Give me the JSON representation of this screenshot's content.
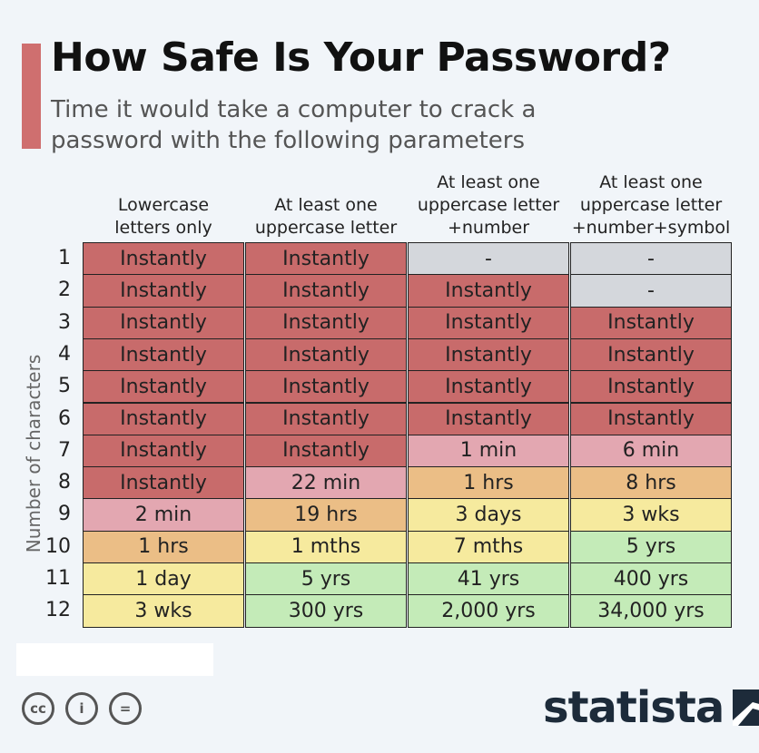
{
  "title": "How Safe Is Your Password?",
  "subtitle": "Time it would take a computer to crack a password with the following parameters",
  "colors": {
    "accent": "#cf6f6f",
    "instant": "#c86b6b",
    "minutes": "#e3a7b1",
    "hours": "#ebbe86",
    "days_months": "#f6ea9e",
    "years": "#c4ebb8",
    "na": "#d4d7dc"
  },
  "chart_data": {
    "type": "table",
    "row_axis_label": "Number of characters",
    "columns": [
      "Lowercase\nletters only",
      "At least one\nuppercase letter",
      "At least one\nuppercase letter\n+number",
      "At least one\nuppercase letter\n+number+symbol"
    ],
    "rows": [
      "1",
      "2",
      "3",
      "4",
      "5",
      "6",
      "7",
      "8",
      "9",
      "10",
      "11",
      "12"
    ],
    "cells": [
      [
        "Instantly",
        "Instantly",
        "-",
        "-"
      ],
      [
        "Instantly",
        "Instantly",
        "Instantly",
        "-"
      ],
      [
        "Instantly",
        "Instantly",
        "Instantly",
        "Instantly"
      ],
      [
        "Instantly",
        "Instantly",
        "Instantly",
        "Instantly"
      ],
      [
        "Instantly",
        "Instantly",
        "Instantly",
        "Instantly"
      ],
      [
        "Instantly",
        "Instantly",
        "Instantly",
        "Instantly"
      ],
      [
        "Instantly",
        "Instantly",
        "1 min",
        "6 min"
      ],
      [
        "Instantly",
        "22 min",
        "1 hrs",
        "8 hrs"
      ],
      [
        "2 min",
        "19 hrs",
        "3 days",
        "3 wks"
      ],
      [
        "1 hrs",
        "1 mths",
        "7 mths",
        "5 yrs"
      ],
      [
        "1 day",
        "5 yrs",
        "41 yrs",
        "400 yrs"
      ],
      [
        "3 wks",
        "300 yrs",
        "2,000 yrs",
        "34,000 yrs"
      ]
    ],
    "cell_categories": [
      [
        "instant",
        "instant",
        "na",
        "na"
      ],
      [
        "instant",
        "instant",
        "instant",
        "na"
      ],
      [
        "instant",
        "instant",
        "instant",
        "instant"
      ],
      [
        "instant",
        "instant",
        "instant",
        "instant"
      ],
      [
        "instant",
        "instant",
        "instant",
        "instant"
      ],
      [
        "instant",
        "instant",
        "instant",
        "instant"
      ],
      [
        "instant",
        "instant",
        "minutes",
        "minutes"
      ],
      [
        "instant",
        "minutes",
        "hours",
        "hours"
      ],
      [
        "minutes",
        "hours",
        "days_months",
        "days_months"
      ],
      [
        "hours",
        "days_months",
        "days_months",
        "years"
      ],
      [
        "days_months",
        "years",
        "years",
        "years"
      ],
      [
        "days_months",
        "years",
        "years",
        "years"
      ]
    ]
  },
  "footer": {
    "license_icons": [
      "cc-icon",
      "attribution-icon",
      "no-derivatives-icon"
    ],
    "license_glyphs": [
      "cc",
      "i",
      "="
    ],
    "brand": "statista"
  }
}
